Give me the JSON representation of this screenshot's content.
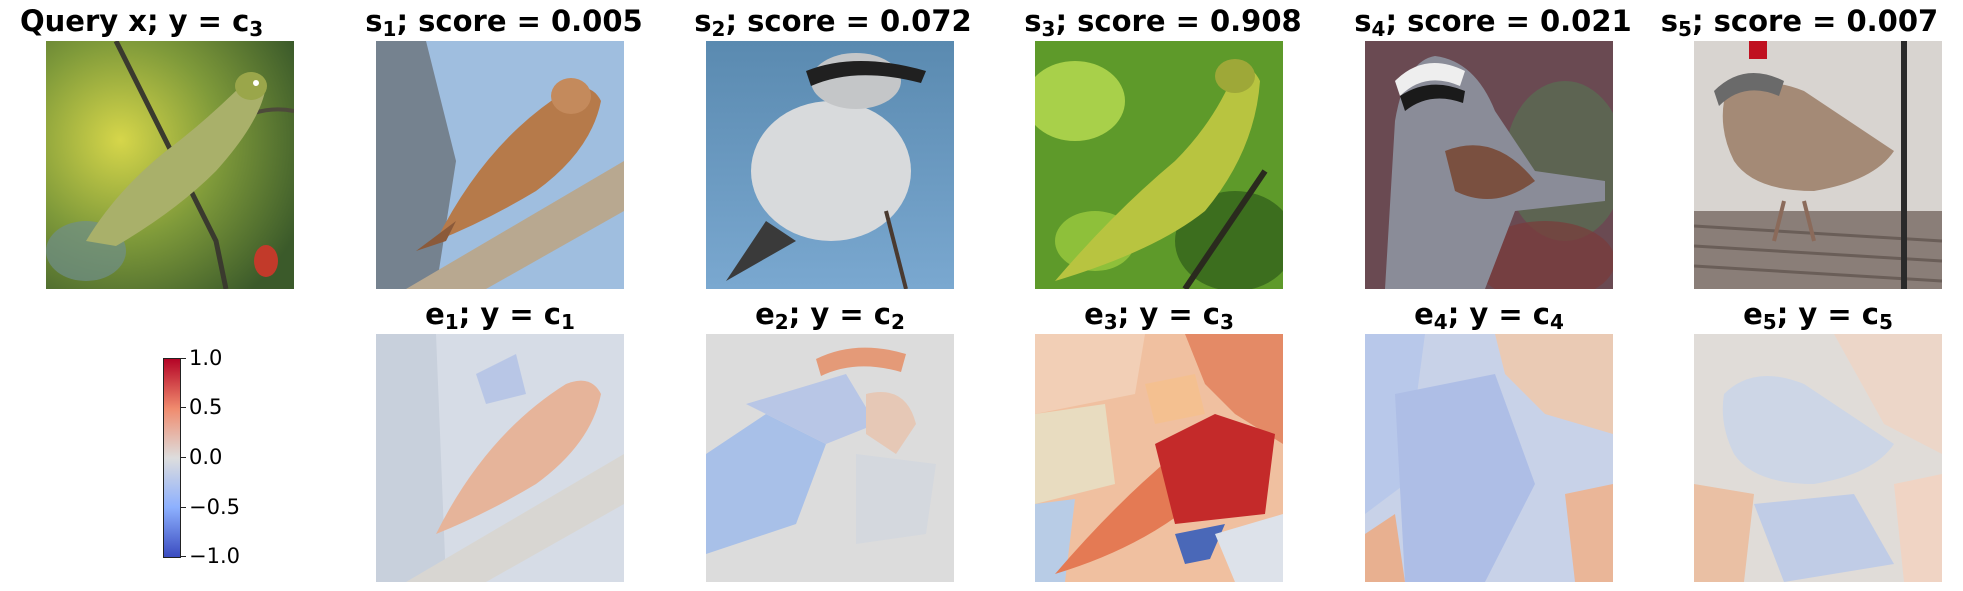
{
  "query": {
    "title_text": "Query x; y = c",
    "title_sub": "3"
  },
  "samples": [
    {
      "label": "s",
      "index": "1",
      "score_text": "; score = 0.005"
    },
    {
      "label": "s",
      "index": "2",
      "score_text": "; score = 0.072"
    },
    {
      "label": "s",
      "index": "3",
      "score_text": "; score = 0.908"
    },
    {
      "label": "s",
      "index": "4",
      "score_text": "; score = 0.021"
    },
    {
      "label": "s",
      "index": "5",
      "score_text": "; score = 0.007"
    }
  ],
  "explanations": [
    {
      "label": "e",
      "index": "1",
      "mid": "; y = c",
      "class_index": "1"
    },
    {
      "label": "e",
      "index": "2",
      "mid": "; y = c",
      "class_index": "2"
    },
    {
      "label": "e",
      "index": "3",
      "mid": "; y = c",
      "class_index": "3"
    },
    {
      "label": "e",
      "index": "4",
      "mid": "; y = c",
      "class_index": "4"
    },
    {
      "label": "e",
      "index": "5",
      "mid": "; y = c",
      "class_index": "5"
    }
  ],
  "colorbar": {
    "ticks": [
      "1.0",
      "0.5",
      "0.0",
      "−0.5",
      "−1.0"
    ],
    "colormap": "coolwarm",
    "colors": {
      "high": "#b40426",
      "mid": "#dddddd",
      "low": "#3b4cc0"
    }
  }
}
